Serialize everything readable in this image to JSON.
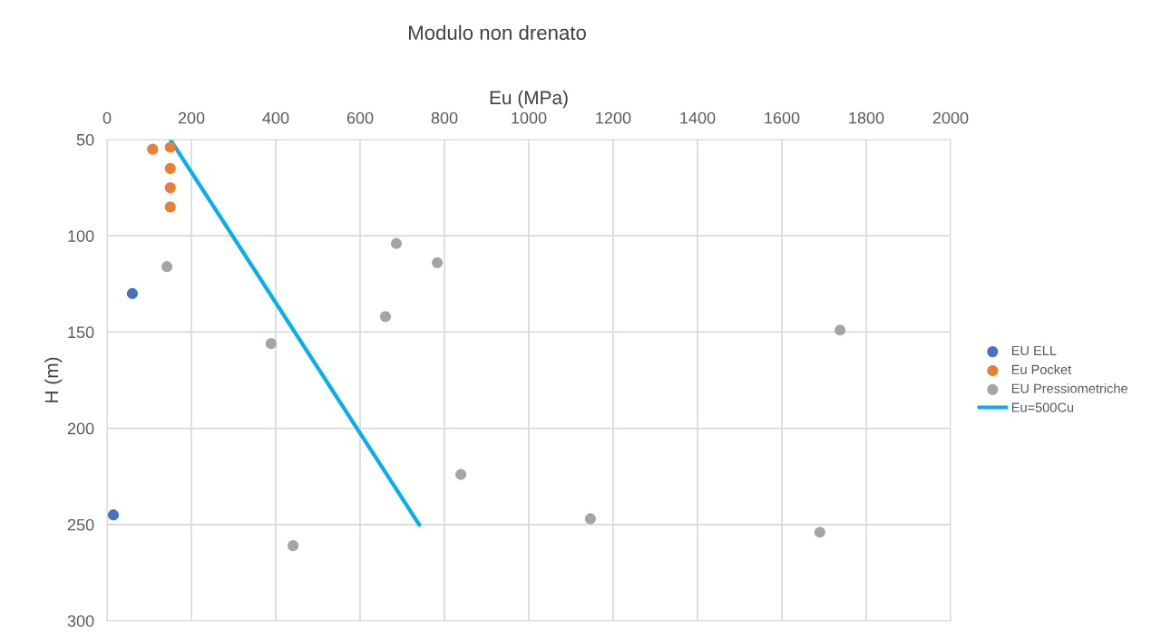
{
  "chart_data": {
    "type": "scatter",
    "title": "Modulo non drenato",
    "xlabel": "Eu (MPa)",
    "ylabel": "H (m)",
    "xlim": [
      0,
      2000
    ],
    "xticks": [
      0,
      200,
      400,
      600,
      800,
      1000,
      1200,
      1400,
      1600,
      1800,
      2000
    ],
    "ylim": [
      300,
      50
    ],
    "yticks": [
      50,
      100,
      150,
      200,
      250,
      300
    ],
    "grid": true,
    "legend": "right",
    "marker": "circle",
    "series": [
      {
        "name": "EU ELL",
        "color": "#4472c4",
        "x": [
          60,
          15
        ],
        "values": [
          130,
          245
        ]
      },
      {
        "name": "Eu Pocket",
        "color": "#ed7d31",
        "x": [
          108,
          150,
          150,
          150,
          150
        ],
        "values": [
          55,
          54,
          65,
          75,
          85
        ]
      },
      {
        "name": "EU Pressiometriche",
        "color": "#a5a5a5",
        "x": [
          142,
          686,
          783,
          660,
          389,
          839,
          1146,
          441,
          1738,
          1690
        ],
        "values": [
          116,
          104,
          114,
          142,
          156,
          224,
          247,
          261,
          149,
          254
        ]
      },
      {
        "name": "Eu=500Cu",
        "type": "line",
        "color": "#00b0f0",
        "x": [
          150,
          740
        ],
        "values": [
          50,
          250
        ],
        "marker": "none"
      }
    ]
  }
}
